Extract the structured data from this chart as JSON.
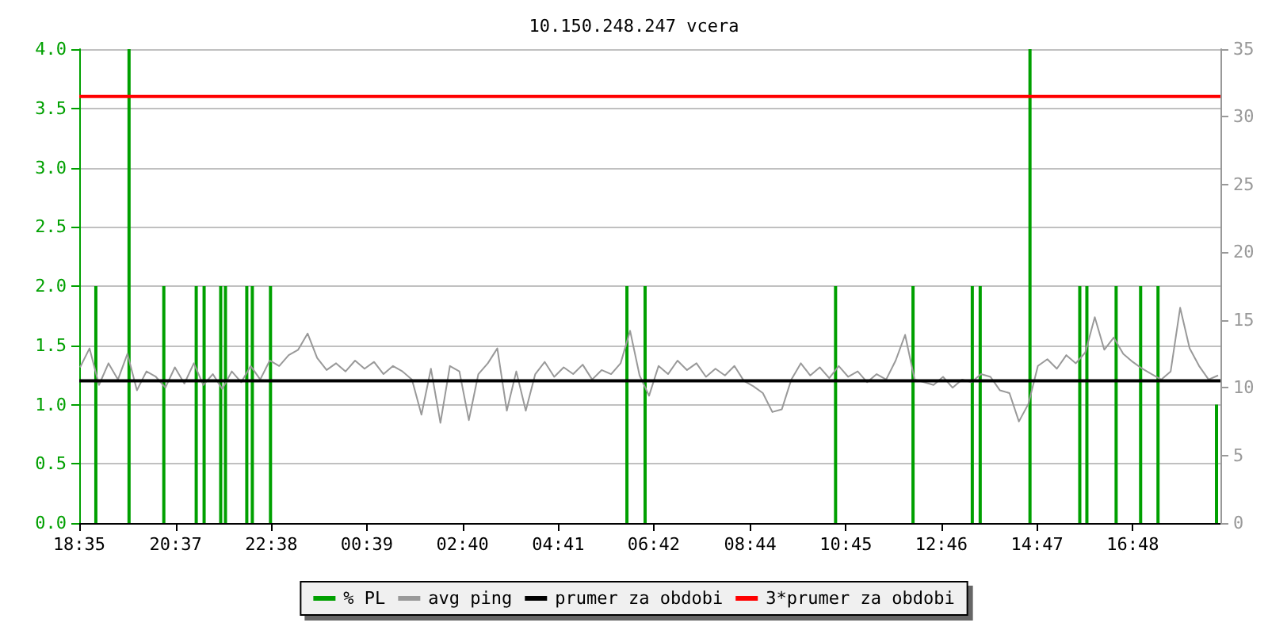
{
  "chart_data": {
    "type": "line",
    "title": "10.150.248.247 vcera",
    "marker": "none",
    "grid": "y",
    "legend": "bottom",
    "xlim": [
      "--01-01T18:35",
      "--01-02T18:39"
    ],
    "xticks": [
      {
        "value": "--01-01T18:35",
        "label": "18:35"
      },
      {
        "value": "--01-01T20:37",
        "label": "20:37"
      },
      {
        "value": "--01-01T22:38",
        "label": "22:38"
      },
      {
        "value": "--01-02T00:39",
        "label": "00:39"
      },
      {
        "value": "--01-02T02:40",
        "label": "02:40"
      },
      {
        "value": "--01-02T04:41",
        "label": "04:41"
      },
      {
        "value": "--01-02T06:42",
        "label": "06:42"
      },
      {
        "value": "--01-02T08:44",
        "label": "08:44"
      },
      {
        "value": "--01-02T10:45",
        "label": "10:45"
      },
      {
        "value": "--01-02T12:46",
        "label": "12:46"
      },
      {
        "value": "--01-02T14:47",
        "label": "14:47"
      },
      {
        "value": "--01-02T16:48",
        "label": "16:48"
      }
    ],
    "ylim": [
      0,
      4
    ],
    "yticks": [
      {
        "value": 0,
        "label": "0.0"
      },
      {
        "value": 0.5,
        "label": "0.5"
      },
      {
        "value": 1,
        "label": "1.0"
      },
      {
        "value": 1.5,
        "label": "1.5"
      },
      {
        "value": 2,
        "label": "2.0"
      },
      {
        "value": 2.5,
        "label": "2.5"
      },
      {
        "value": 3,
        "label": "3.0"
      },
      {
        "value": 3.5,
        "label": "3.5"
      },
      {
        "value": 4,
        "label": "4.0"
      }
    ],
    "y2lim": [
      0,
      35
    ],
    "y2ticks": [
      0,
      5,
      10,
      15,
      20,
      25,
      30,
      35
    ],
    "series": [
      {
        "name": "% PL",
        "type": "bar",
        "color": "#00a000",
        "x": [
          "--01-01T18:56",
          "--01-01T19:38",
          "--01-01T20:22",
          "--01-01T21:03",
          "--01-01T21:13",
          "--01-01T21:34",
          "--01-01T21:40",
          "--01-01T22:07",
          "--01-01T22:14",
          "--01-01T22:37",
          "--01-02T06:08",
          "--01-02T06:31",
          "--01-02T10:32",
          "--01-02T12:10",
          "--01-02T13:25",
          "--01-02T13:35",
          "--01-02T14:38",
          "--01-02T15:41",
          "--01-02T15:50",
          "--01-02T16:27",
          "--01-02T16:58",
          "--01-02T17:20",
          "--01-02T18:34"
        ],
        "values": [
          2,
          4,
          2,
          2,
          2,
          2,
          2,
          2,
          2,
          2,
          2,
          2,
          2,
          2,
          2,
          2,
          4,
          2,
          2,
          2,
          2,
          2,
          1
        ]
      },
      {
        "name": "avg ping",
        "axis": "y2",
        "color": "#999999",
        "x": [
          "--01-01T18:36",
          "--01-01T18:48",
          "--01-01T19:00",
          "--01-01T19:12",
          "--01-01T19:24",
          "--01-01T19:36",
          "--01-01T19:48",
          "--01-01T20:00",
          "--01-01T20:12",
          "--01-01T20:24",
          "--01-01T20:36",
          "--01-01T20:48",
          "--01-01T21:00",
          "--01-01T21:12",
          "--01-01T21:24",
          "--01-01T21:36",
          "--01-01T21:48",
          "--01-01T22:00",
          "--01-01T22:12",
          "--01-01T22:24",
          "--01-01T22:36",
          "--01-01T22:48",
          "--01-01T23:00",
          "--01-01T23:12",
          "--01-01T23:24",
          "--01-01T23:36",
          "--01-01T23:48",
          "--01-02T00:00",
          "--01-02T00:12",
          "--01-02T00:24",
          "--01-02T00:36",
          "--01-02T00:48",
          "--01-02T01:00",
          "--01-02T01:12",
          "--01-02T01:24",
          "--01-02T01:36",
          "--01-02T01:48",
          "--01-02T02:00",
          "--01-02T02:12",
          "--01-02T02:24",
          "--01-02T02:36",
          "--01-02T02:48",
          "--01-02T03:00",
          "--01-02T03:12",
          "--01-02T03:24",
          "--01-02T03:36",
          "--01-02T03:48",
          "--01-02T04:00",
          "--01-02T04:12",
          "--01-02T04:24",
          "--01-02T04:36",
          "--01-02T04:48",
          "--01-02T05:00",
          "--01-02T05:12",
          "--01-02T05:24",
          "--01-02T05:36",
          "--01-02T05:48",
          "--01-02T06:00",
          "--01-02T06:12",
          "--01-02T06:24",
          "--01-02T06:36",
          "--01-02T06:48",
          "--01-02T07:00",
          "--01-02T07:12",
          "--01-02T07:24",
          "--01-02T07:36",
          "--01-02T07:48",
          "--01-02T08:00",
          "--01-02T08:12",
          "--01-02T08:24",
          "--01-02T08:36",
          "--01-02T08:48",
          "--01-02T09:00",
          "--01-02T09:12",
          "--01-02T09:24",
          "--01-02T09:36",
          "--01-02T09:48",
          "--01-02T10:00",
          "--01-02T10:12",
          "--01-02T10:24",
          "--01-02T10:36",
          "--01-02T10:48",
          "--01-02T11:00",
          "--01-02T11:12",
          "--01-02T11:24",
          "--01-02T11:36",
          "--01-02T11:48",
          "--01-02T12:00",
          "--01-02T12:12",
          "--01-02T12:24",
          "--01-02T12:36",
          "--01-02T12:48",
          "--01-02T13:00",
          "--01-02T13:12",
          "--01-02T13:24",
          "--01-02T13:36",
          "--01-02T13:48",
          "--01-02T14:00",
          "--01-02T14:12",
          "--01-02T14:24",
          "--01-02T14:36",
          "--01-02T14:48",
          "--01-02T15:00",
          "--01-02T15:12",
          "--01-02T15:24",
          "--01-02T15:36",
          "--01-02T15:48",
          "--01-02T16:00",
          "--01-02T16:12",
          "--01-02T16:24",
          "--01-02T16:36",
          "--01-02T16:48",
          "--01-02T17:00",
          "--01-02T17:12",
          "--01-02T17:24",
          "--01-02T17:36",
          "--01-02T17:48",
          "--01-02T18:00",
          "--01-02T18:12",
          "--01-02T18:24",
          "--01-02T18:36"
        ],
        "values": [
          11.5,
          12.9,
          10.2,
          11.8,
          10.6,
          12.5,
          9.8,
          11.2,
          10.8,
          10.0,
          11.5,
          10.3,
          11.8,
          10.2,
          11.0,
          9.9,
          11.2,
          10.4,
          11.6,
          10.6,
          12.0,
          11.6,
          12.4,
          12.8,
          14.0,
          12.2,
          11.3,
          11.8,
          11.2,
          12.0,
          11.4,
          11.9,
          11.0,
          11.6,
          11.2,
          10.6,
          8.0,
          11.4,
          7.4,
          11.6,
          11.2,
          7.6,
          11.0,
          11.8,
          12.9,
          8.3,
          11.2,
          8.3,
          11.0,
          11.9,
          10.8,
          11.5,
          11.0,
          11.7,
          10.6,
          11.3,
          11.0,
          11.8,
          14.2,
          10.9,
          9.4,
          11.6,
          11.0,
          12.0,
          11.3,
          11.8,
          10.8,
          11.4,
          10.9,
          11.6,
          10.5,
          10.1,
          9.6,
          8.2,
          8.4,
          10.6,
          11.8,
          10.9,
          11.5,
          10.7,
          11.6,
          10.8,
          11.2,
          10.4,
          11.0,
          10.6,
          12.0,
          13.9,
          10.6,
          10.4,
          10.2,
          10.8,
          10.0,
          10.6,
          10.4,
          11.0,
          10.8,
          9.8,
          9.6,
          7.5,
          8.8,
          11.6,
          12.1,
          11.4,
          12.4,
          11.8,
          12.6,
          15.2,
          12.8,
          13.7,
          12.5,
          11.9,
          11.4,
          11.0,
          10.6,
          11.2,
          15.9,
          12.9,
          11.6,
          10.6,
          10.9
        ]
      }
    ],
    "ref_lines": [
      {
        "axis": "y",
        "value": 1.2,
        "label": "prumer za obdobi",
        "color": "#000000"
      },
      {
        "axis": "y",
        "value": 3.6,
        "label": "3*prumer za obdobi",
        "color": "#ff0000"
      }
    ]
  }
}
